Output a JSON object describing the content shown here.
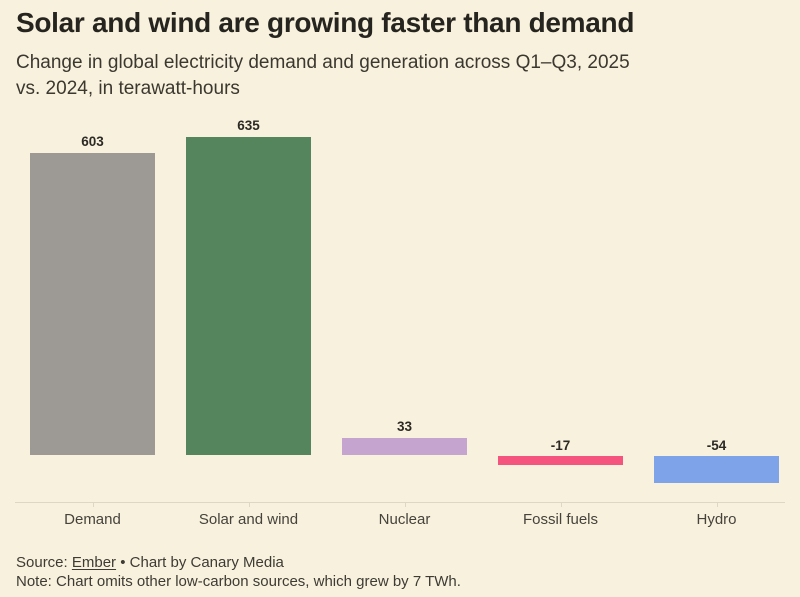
{
  "colors": {
    "background": "#f8f1dd",
    "title_text": "#26241f",
    "subtitle_text": "#3b3830",
    "value_label_text": "#2c2a25",
    "category_label_text": "#45433c",
    "axis_line": "#ded7c3",
    "footer_text": "#3d3b34"
  },
  "header": {
    "subtitle_lines": [
      "Change in global electricity demand and generation across Q1–Q3, 2025",
      "vs. 2024, in terawatt-hours"
    ]
  },
  "chart_data": {
    "type": "bar",
    "title": "Solar and wind are growing faster than demand",
    "subtitle": "Change in global electricity demand and generation across Q1–Q3, 2025 vs. 2024, in terawatt-hours",
    "categories": [
      "Demand",
      "Solar and wind",
      "Nuclear",
      "Fossil fuels",
      "Hydro"
    ],
    "values": [
      603,
      635,
      33,
      -17,
      -54
    ],
    "data_labels": [
      "603",
      "635",
      "33",
      "-17",
      "-54"
    ],
    "bar_colors": [
      "#9d9a95",
      "#54855c",
      "#c6a4d0",
      "#f4547e",
      "#7fa3e9"
    ],
    "unit": "terawatt-hours",
    "baseline": 0,
    "ylim": [
      -60,
      660
    ],
    "xlabel": "",
    "ylabel": "",
    "grid": false,
    "legend_position": "none"
  },
  "footer": {
    "source_prefix": "Source: ",
    "source_link": "Ember",
    "source_suffix": " • Chart by Canary Media",
    "note": "Note: Chart omits other low-carbon sources, which grew by 7 TWh."
  }
}
